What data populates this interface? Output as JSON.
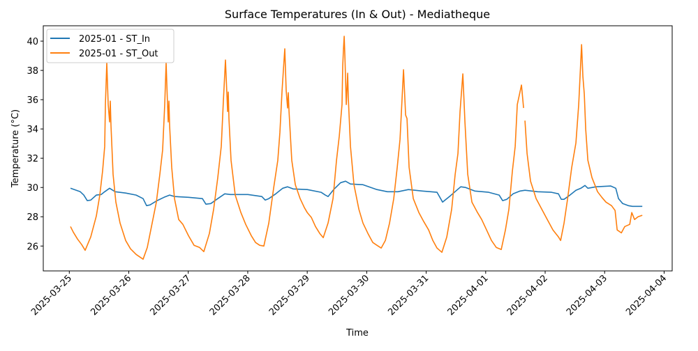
{
  "chart_data": {
    "type": "line",
    "title": "Surface Temperatures (In & Out) - Mediatheque",
    "xlabel": "Time",
    "ylabel": "Temperature (°C)",
    "xlim": [
      "2025-03-24 13:30",
      "2025-04-04 03:15"
    ],
    "ylim": [
      24.3,
      41.05
    ],
    "x_ticks": [
      "2025-03-25",
      "2025-03-26",
      "2025-03-27",
      "2025-03-28",
      "2025-03-29",
      "2025-03-30",
      "2025-03-31",
      "2025-04-01",
      "2025-04-02",
      "2025-04-03",
      "2025-04-04"
    ],
    "y_ticks": [
      26,
      28,
      30,
      32,
      34,
      36,
      38,
      40
    ],
    "grid": false,
    "legend": "top-left",
    "series": [
      {
        "name": "2025-01 - ST_In",
        "color": "#1f77b4",
        "points": [
          [
            "2025-03-25 00:29",
            29.95
          ],
          [
            "2025-03-25 04:25",
            29.71
          ],
          [
            "2025-03-25 05:50",
            29.48
          ],
          [
            "2025-03-25 07:14",
            29.1
          ],
          [
            "2025-03-25 08:39",
            29.14
          ],
          [
            "2025-03-25 10:54",
            29.48
          ],
          [
            "2025-03-25 12:52",
            29.52
          ],
          [
            "2025-03-25 14:17",
            29.71
          ],
          [
            "2025-03-25 16:15",
            29.95
          ],
          [
            "2025-03-25 18:30",
            29.71
          ],
          [
            "2025-03-25 22:44",
            29.62
          ],
          [
            "2025-03-26 02:57",
            29.48
          ],
          [
            "2025-03-26 05:46",
            29.24
          ],
          [
            "2025-03-26 07:11",
            28.76
          ],
          [
            "2025-03-26 08:35",
            28.81
          ],
          [
            "2025-03-26 11:25",
            29.1
          ],
          [
            "2025-03-26 14:14",
            29.33
          ],
          [
            "2025-03-26 16:29",
            29.48
          ],
          [
            "2025-03-26 18:27",
            29.38
          ],
          [
            "2025-03-27 00:05",
            29.33
          ],
          [
            "2025-03-27 05:43",
            29.24
          ],
          [
            "2025-03-27 07:08",
            28.86
          ],
          [
            "2025-03-27 09:06",
            28.9
          ],
          [
            "2025-03-27 11:55",
            29.24
          ],
          [
            "2025-03-27 14:44",
            29.57
          ],
          [
            "2025-03-27 16:59",
            29.52
          ],
          [
            "2025-03-27 19:48",
            29.52
          ],
          [
            "2025-03-28 00:02",
            29.52
          ],
          [
            "2025-03-28 05:40",
            29.38
          ],
          [
            "2025-03-28 07:04",
            29.14
          ],
          [
            "2025-03-28 08:29",
            29.24
          ],
          [
            "2025-03-28 11:18",
            29.57
          ],
          [
            "2025-03-28 14:07",
            29.95
          ],
          [
            "2025-03-28 16:05",
            30.05
          ],
          [
            "2025-03-28 18:20",
            29.9
          ],
          [
            "2025-03-29 00:00",
            29.86
          ],
          [
            "2025-03-29 05:36",
            29.67
          ],
          [
            "2025-03-29 07:17",
            29.48
          ],
          [
            "2025-03-29 08:25",
            29.38
          ],
          [
            "2025-03-29 10:40",
            29.86
          ],
          [
            "2025-03-29 13:29",
            30.33
          ],
          [
            "2025-03-29 15:28",
            30.43
          ],
          [
            "2025-03-29 17:26",
            30.24
          ],
          [
            "2025-03-29 22:30",
            30.19
          ],
          [
            "2025-03-30 04:08",
            29.86
          ],
          [
            "2025-03-30 08:22",
            29.71
          ],
          [
            "2025-03-30 12:35",
            29.71
          ],
          [
            "2025-03-30 16:49",
            29.86
          ],
          [
            "2025-03-30 22:27",
            29.76
          ],
          [
            "2025-03-31 04:22",
            29.67
          ],
          [
            "2025-03-31 06:37",
            29.0
          ],
          [
            "2025-03-31 09:43",
            29.43
          ],
          [
            "2025-03-31 13:57",
            30.05
          ],
          [
            "2025-03-31 15:55",
            30.0
          ],
          [
            "2025-03-31 19:35",
            29.76
          ],
          [
            "2025-04-01 01:13",
            29.67
          ],
          [
            "2025-04-01 05:26",
            29.48
          ],
          [
            "2025-04-01 06:51",
            29.1
          ],
          [
            "2025-04-01 08:32",
            29.19
          ],
          [
            "2025-04-01 11:04",
            29.57
          ],
          [
            "2025-04-01 13:53",
            29.76
          ],
          [
            "2025-04-01 15:52",
            29.81
          ],
          [
            "2025-04-01 20:56",
            29.71
          ],
          [
            "2025-04-02 02:34",
            29.67
          ],
          [
            "2025-04-02 05:23",
            29.57
          ],
          [
            "2025-04-02 06:30",
            29.19
          ],
          [
            "2025-04-02 07:38",
            29.19
          ],
          [
            "2025-04-02 09:36",
            29.43
          ],
          [
            "2025-04-02 12:25",
            29.81
          ],
          [
            "2025-04-02 14:24",
            29.95
          ],
          [
            "2025-04-02 16:05",
            30.14
          ],
          [
            "2025-04-02 17:13",
            29.95
          ],
          [
            "2025-04-02 20:35",
            30.05
          ],
          [
            "2025-04-03 02:30",
            30.1
          ],
          [
            "2025-04-03 04:29",
            29.95
          ],
          [
            "2025-04-03 05:36",
            29.24
          ],
          [
            "2025-04-03 07:17",
            28.9
          ],
          [
            "2025-04-03 09:33",
            28.76
          ],
          [
            "2025-04-03 11:14",
            28.71
          ],
          [
            "2025-04-03 12:56",
            28.71
          ],
          [
            "2025-04-03 15:11",
            28.71
          ]
        ]
      },
      {
        "name": "2025-01 - ST_Out",
        "color": "#ff7f0e",
        "points": [
          [
            "2025-03-25 00:29",
            27.33
          ],
          [
            "2025-03-25 01:36",
            26.95
          ],
          [
            "2025-03-25 03:18",
            26.48
          ],
          [
            "2025-03-25 05:00",
            26.1
          ],
          [
            "2025-03-25 06:24",
            25.71
          ],
          [
            "2025-03-25 08:39",
            26.62
          ],
          [
            "2025-03-25 10:54",
            28.05
          ],
          [
            "2025-03-25 12:19",
            29.48
          ],
          [
            "2025-03-25 13:26",
            31.14
          ],
          [
            "2025-03-25 14:17",
            32.81
          ],
          [
            "2025-03-25 14:34",
            35.67
          ],
          [
            "2025-03-25 15:08",
            38.52
          ],
          [
            "2025-03-25 15:41",
            35.67
          ],
          [
            "2025-03-25 16:15",
            34.48
          ],
          [
            "2025-03-25 16:32",
            35.9
          ],
          [
            "2025-03-25 16:49",
            34.24
          ],
          [
            "2025-03-25 17:40",
            30.9
          ],
          [
            "2025-03-25 18:47",
            29.0
          ],
          [
            "2025-03-25 20:29",
            27.57
          ],
          [
            "2025-03-25 22:44",
            26.38
          ],
          [
            "2025-03-26 00:42",
            25.81
          ],
          [
            "2025-03-26 02:57",
            25.43
          ],
          [
            "2025-03-26 05:46",
            25.1
          ],
          [
            "2025-03-26 07:28",
            25.9
          ],
          [
            "2025-03-26 09:26",
            27.57
          ],
          [
            "2025-03-26 11:08",
            29.0
          ],
          [
            "2025-03-26 12:32",
            30.9
          ],
          [
            "2025-03-26 13:40",
            32.57
          ],
          [
            "2025-03-26 14:30",
            35.67
          ],
          [
            "2025-03-26 15:04",
            38.52
          ],
          [
            "2025-03-26 15:38",
            35.67
          ],
          [
            "2025-03-26 15:55",
            34.48
          ],
          [
            "2025-03-26 16:12",
            35.9
          ],
          [
            "2025-03-26 16:29",
            34.24
          ],
          [
            "2025-03-26 17:19",
            31.38
          ],
          [
            "2025-03-26 18:27",
            29.24
          ],
          [
            "2025-03-26 20:08",
            27.81
          ],
          [
            "2025-03-26 21:50",
            27.48
          ],
          [
            "2025-03-27 00:05",
            26.71
          ],
          [
            "2025-03-27 02:20",
            26.05
          ],
          [
            "2025-03-27 04:35",
            25.9
          ],
          [
            "2025-03-27 06:17",
            25.62
          ],
          [
            "2025-03-27 08:32",
            26.86
          ],
          [
            "2025-03-27 10:14",
            28.52
          ],
          [
            "2025-03-27 11:55",
            30.67
          ],
          [
            "2025-03-27 13:19",
            32.81
          ],
          [
            "2025-03-27 14:10",
            35.9
          ],
          [
            "2025-03-27 15:01",
            38.71
          ],
          [
            "2025-03-27 15:52",
            35.19
          ],
          [
            "2025-03-27 16:08",
            36.52
          ],
          [
            "2025-03-27 16:25",
            34.71
          ],
          [
            "2025-03-27 17:16",
            31.86
          ],
          [
            "2025-03-27 18:57",
            29.48
          ],
          [
            "2025-03-27 21:13",
            28.29
          ],
          [
            "2025-03-27 23:11",
            27.48
          ],
          [
            "2025-03-28 01:26",
            26.71
          ],
          [
            "2025-03-28 03:08",
            26.24
          ],
          [
            "2025-03-28 04:49",
            26.05
          ],
          [
            "2025-03-28 06:30",
            26.0
          ],
          [
            "2025-03-28 08:29",
            27.57
          ],
          [
            "2025-03-28 10:27",
            29.95
          ],
          [
            "2025-03-28 12:08",
            31.86
          ],
          [
            "2025-03-28 12:59",
            33.76
          ],
          [
            "2025-03-28 13:50",
            36.62
          ],
          [
            "2025-03-28 14:57",
            39.48
          ],
          [
            "2025-03-28 15:31",
            36.62
          ],
          [
            "2025-03-28 16:05",
            35.43
          ],
          [
            "2025-03-28 16:22",
            36.48
          ],
          [
            "2025-03-28 16:39",
            35.19
          ],
          [
            "2025-03-28 17:46",
            31.86
          ],
          [
            "2025-03-28 19:11",
            30.19
          ],
          [
            "2025-03-28 21:09",
            29.24
          ],
          [
            "2025-03-28 22:51",
            28.62
          ],
          [
            "2025-03-29 00:00",
            28.29
          ],
          [
            "2025-03-29 01:40",
            27.95
          ],
          [
            "2025-03-29 03:21",
            27.33
          ],
          [
            "2025-03-29 05:03",
            26.86
          ],
          [
            "2025-03-29 06:27",
            26.57
          ],
          [
            "2025-03-29 08:25",
            27.57
          ],
          [
            "2025-03-29 10:24",
            29.24
          ],
          [
            "2025-03-29 11:48",
            31.86
          ],
          [
            "2025-03-29 12:56",
            33.52
          ],
          [
            "2025-03-29 14:03",
            35.67
          ],
          [
            "2025-03-29 14:20",
            38.29
          ],
          [
            "2025-03-29 14:37",
            39.48
          ],
          [
            "2025-03-29 14:54",
            40.33
          ],
          [
            "2025-03-29 15:11",
            39.0
          ],
          [
            "2025-03-29 15:45",
            35.67
          ],
          [
            "2025-03-29 16:19",
            37.81
          ],
          [
            "2025-03-29 16:35",
            36.14
          ],
          [
            "2025-03-29 17:26",
            32.81
          ],
          [
            "2025-03-29 18:51",
            30.19
          ],
          [
            "2025-03-29 20:49",
            28.52
          ],
          [
            "2025-03-29 22:30",
            27.57
          ],
          [
            "2025-03-30 00:29",
            26.86
          ],
          [
            "2025-03-30 02:27",
            26.24
          ],
          [
            "2025-03-30 04:08",
            26.05
          ],
          [
            "2025-03-30 05:50",
            25.86
          ],
          [
            "2025-03-30 07:31",
            26.38
          ],
          [
            "2025-03-30 09:13",
            27.57
          ],
          [
            "2025-03-30 10:54",
            29.24
          ],
          [
            "2025-03-30 12:19",
            31.38
          ],
          [
            "2025-03-30 13:26",
            33.29
          ],
          [
            "2025-03-30 14:17",
            36.14
          ],
          [
            "2025-03-30 14:51",
            38.05
          ],
          [
            "2025-03-30 15:41",
            34.95
          ],
          [
            "2025-03-30 16:15",
            34.71
          ],
          [
            "2025-03-30 17:06",
            31.38
          ],
          [
            "2025-03-30 18:47",
            29.24
          ],
          [
            "2025-03-30 21:03",
            28.29
          ],
          [
            "2025-03-30 23:01",
            27.67
          ],
          [
            "2025-03-31 00:59",
            27.1
          ],
          [
            "2025-03-31 02:40",
            26.38
          ],
          [
            "2025-03-31 04:22",
            25.86
          ],
          [
            "2025-03-31 06:20",
            25.57
          ],
          [
            "2025-03-31 08:19",
            26.62
          ],
          [
            "2025-03-31 10:17",
            28.52
          ],
          [
            "2025-03-31 11:41",
            30.9
          ],
          [
            "2025-03-31 12:49",
            32.33
          ],
          [
            "2025-03-31 13:40",
            35.19
          ],
          [
            "2025-03-31 14:47",
            37.76
          ],
          [
            "2025-03-31 15:38",
            34.48
          ],
          [
            "2025-03-31 16:46",
            30.9
          ],
          [
            "2025-03-31 18:27",
            29.0
          ],
          [
            "2025-03-31 20:42",
            28.29
          ],
          [
            "2025-03-31 22:24",
            27.81
          ],
          [
            "2025-04-01 00:22",
            27.1
          ],
          [
            "2025-04-01 02:20",
            26.38
          ],
          [
            "2025-04-01 04:19",
            25.9
          ],
          [
            "2025-04-01 06:17",
            25.76
          ],
          [
            "2025-04-01 07:58",
            27.1
          ],
          [
            "2025-04-01 09:23",
            28.52
          ],
          [
            "2025-04-01 10:47",
            31.14
          ],
          [
            "2025-04-01 11:55",
            32.81
          ],
          [
            "2025-04-01 12:46",
            35.67
          ],
          [
            "2025-04-01 14:27",
            37.0
          ],
          [
            "2025-04-01 15:18",
            35.43
          ],
          [
            null,
            null
          ],
          [
            "2025-04-01 15:52",
            34.57
          ],
          [
            "2025-04-01 16:42",
            32.33
          ],
          [
            "2025-04-01 18:07",
            30.43
          ],
          [
            "2025-04-01 20:22",
            29.24
          ],
          [
            "2025-04-01 22:37",
            28.52
          ],
          [
            "2025-04-02 00:52",
            27.81
          ],
          [
            "2025-04-02 03:08",
            27.1
          ],
          [
            "2025-04-02 05:23",
            26.62
          ],
          [
            "2025-04-02 06:14",
            26.38
          ],
          [
            "2025-04-02 07:38",
            27.57
          ],
          [
            "2025-04-02 09:03",
            29.24
          ],
          [
            "2025-04-02 10:44",
            31.38
          ],
          [
            "2025-04-02 12:25",
            33.05
          ],
          [
            "2025-04-02 13:33",
            35.67
          ],
          [
            "2025-04-02 14:41",
            39.76
          ],
          [
            "2025-04-02 15:14",
            37.57
          ],
          [
            "2025-04-02 15:48",
            36.38
          ],
          [
            "2025-04-02 16:22",
            34.0
          ],
          [
            "2025-04-02 17:13",
            31.86
          ],
          [
            "2025-04-02 18:54",
            30.67
          ],
          [
            "2025-04-02 21:09",
            29.71
          ],
          [
            "2025-04-02 22:51",
            29.33
          ],
          [
            "2025-04-03 00:32",
            29.0
          ],
          [
            "2025-04-03 02:47",
            28.76
          ],
          [
            "2025-04-03 04:12",
            28.43
          ],
          [
            "2025-04-03 05:03",
            27.1
          ],
          [
            "2025-04-03 06:44",
            26.9
          ],
          [
            "2025-04-03 08:08",
            27.33
          ],
          [
            "2025-04-03 10:07",
            27.48
          ],
          [
            "2025-04-03 10:57",
            28.29
          ],
          [
            "2025-04-03 12:05",
            27.81
          ],
          [
            "2025-04-03 13:29",
            28.0
          ],
          [
            "2025-04-03 15:11",
            28.1
          ]
        ]
      }
    ]
  }
}
